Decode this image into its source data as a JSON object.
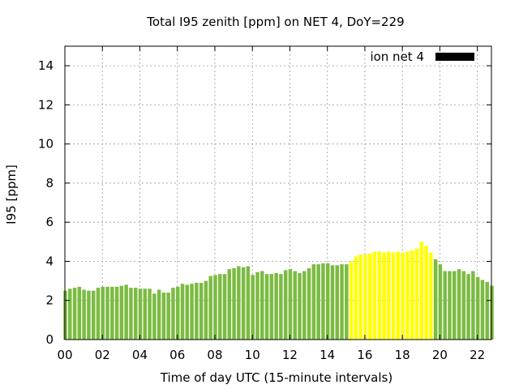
{
  "chart_data": {
    "type": "bar",
    "title": "Total I95 zenith [ppm] on NET 4, DoY=229",
    "xlabel": "Time of day UTC (15-minute intervals)",
    "ylabel": "I95 [ppm]",
    "xlim": [
      0,
      22.75
    ],
    "ylim": [
      0,
      15
    ],
    "x_ticks": [
      "00",
      "02",
      "04",
      "06",
      "08",
      "10",
      "12",
      "14",
      "16",
      "18",
      "20",
      "22"
    ],
    "y_ticks": [
      "0",
      "2",
      "4",
      "6",
      "8",
      "10",
      "12",
      "14"
    ],
    "grid": true,
    "legend": {
      "label": "ion net 4",
      "color": "#000000",
      "position": "top-right"
    },
    "colors": {
      "normal": "#7cbb42",
      "highlight": "#ffff00"
    },
    "highlight_range_hours": [
      15.25,
      19.75
    ],
    "interval_hours": 0.25,
    "values": [
      2.5,
      2.6,
      2.65,
      2.7,
      2.55,
      2.5,
      2.5,
      2.65,
      2.7,
      2.7,
      2.7,
      2.7,
      2.75,
      2.8,
      2.65,
      2.65,
      2.6,
      2.6,
      2.6,
      2.35,
      2.55,
      2.4,
      2.4,
      2.65,
      2.7,
      2.85,
      2.8,
      2.85,
      2.9,
      2.9,
      3.0,
      3.25,
      3.3,
      3.35,
      3.35,
      3.6,
      3.65,
      3.75,
      3.7,
      3.75,
      3.3,
      3.45,
      3.5,
      3.35,
      3.35,
      3.4,
      3.35,
      3.55,
      3.6,
      3.5,
      3.4,
      3.5,
      3.65,
      3.85,
      3.85,
      3.9,
      3.9,
      3.8,
      3.8,
      3.85,
      3.85,
      4.0,
      4.25,
      4.35,
      4.35,
      4.4,
      4.5,
      4.5,
      4.45,
      4.5,
      4.45,
      4.5,
      4.45,
      4.5,
      4.55,
      4.65,
      5.0,
      4.8,
      4.45,
      4.1,
      3.85,
      3.5,
      3.5,
      3.5,
      3.6,
      3.5,
      3.35,
      3.5,
      3.2,
      3.05,
      2.95,
      2.75
    ]
  }
}
